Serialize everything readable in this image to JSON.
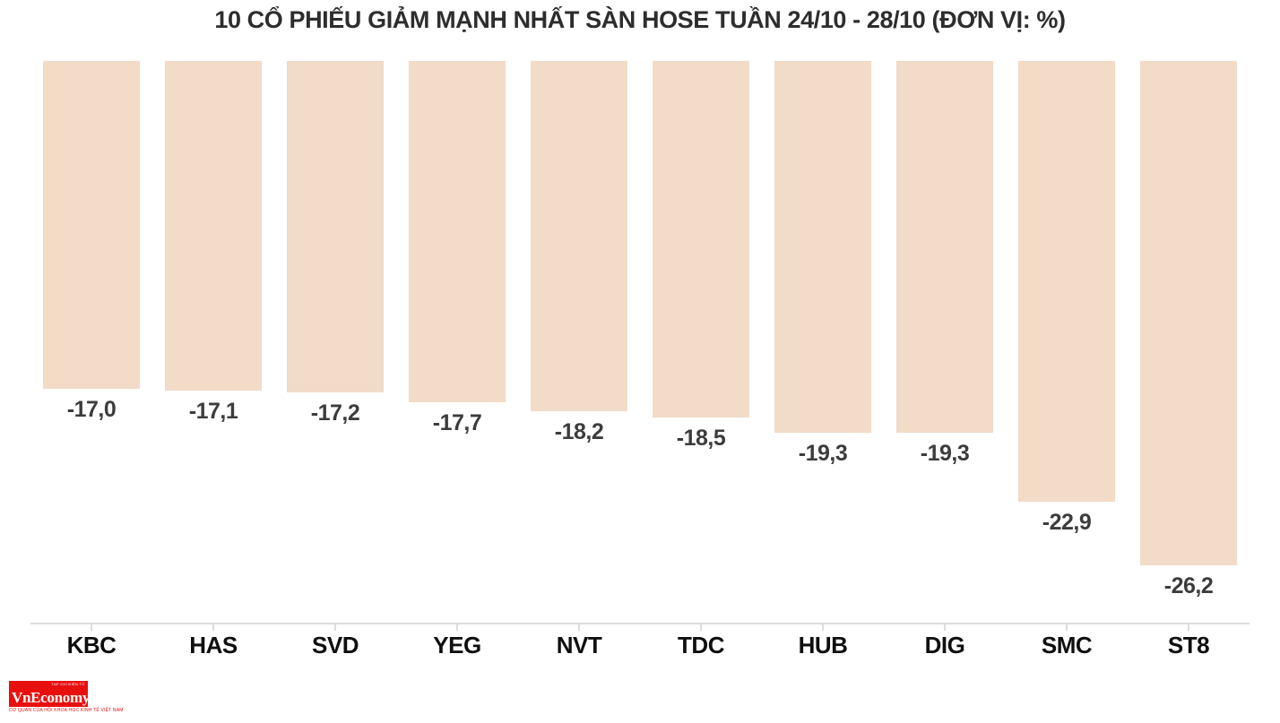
{
  "chart_data": {
    "type": "bar",
    "title": "10 CỔ PHIẾU GIẢM MẠNH NHẤT SÀN HOSE TUẦN 24/10 - 28/10 (ĐƠN VỊ: %)",
    "unit": "%",
    "categories": [
      "KBC",
      "HAS",
      "SVD",
      "YEG",
      "NVT",
      "TDC",
      "HUB",
      "DIG",
      "SMC",
      "ST8"
    ],
    "values": [
      -17.0,
      -17.1,
      -17.2,
      -17.7,
      -18.2,
      -18.5,
      -19.3,
      -19.3,
      -22.9,
      -26.2
    ],
    "value_labels": [
      "-17,0",
      "-17,1",
      "-17,2",
      "-17,7",
      "-18,2",
      "-18,5",
      "-19,3",
      "-19,3",
      "-22,9",
      "-26,2"
    ],
    "ylim": [
      -26.2,
      0
    ],
    "baseline": 0,
    "grid": false,
    "legend": false,
    "bar_color": "#f2dbc7",
    "value_label_color": "#3c3c3c",
    "category_label_color": "#0f0f0f",
    "axis_color": "#dcdcdc",
    "title_color": "#2d2d2d"
  },
  "logo": {
    "tagline_top": "TẠP CHÍ ĐIỆN TỬ",
    "name": "VnEconomy",
    "tagline_bottom": "CƠ QUAN CỦA HỘI KHOA HỌC KINH TẾ VIỆT NAM",
    "brand_color": "#e8100f"
  }
}
